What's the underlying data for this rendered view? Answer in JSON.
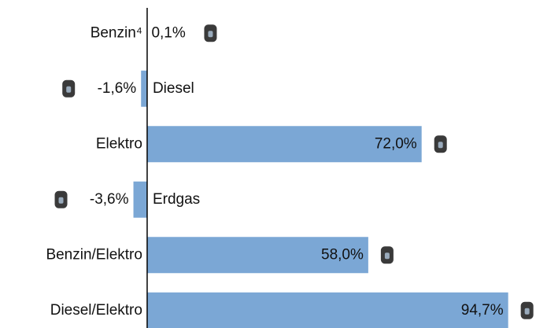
{
  "chart_data": {
    "type": "bar",
    "orientation": "horizontal",
    "categories": [
      "Benzin⁴",
      "Diesel",
      "Elektro",
      "Erdgas",
      "Benzin/Elektro",
      "Diesel/Elektro"
    ],
    "values": [
      0.1,
      -1.6,
      72.0,
      -3.6,
      58.0,
      94.7
    ],
    "value_labels": [
      "0,1%",
      "-1,6%",
      "72,0%",
      "-3,6%",
      "58,0%",
      "94,7%"
    ],
    "color": "#7ba7d5",
    "xlim": [
      -38.6,
      102
    ]
  }
}
